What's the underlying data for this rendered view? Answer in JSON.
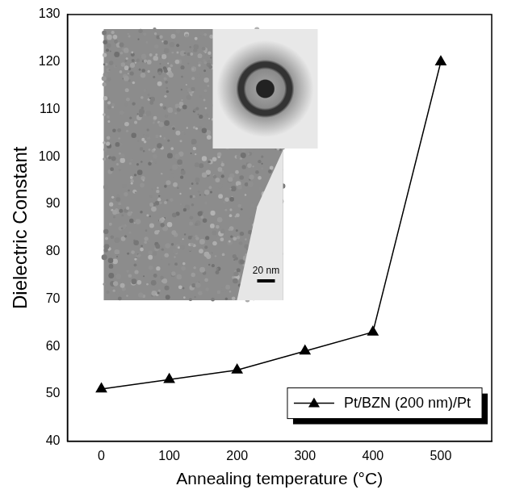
{
  "chart_data": {
    "type": "line",
    "x_label": "Annealing temperature (°C)",
    "y_label": "Dielectric Constant",
    "x": [
      0,
      100,
      200,
      300,
      400,
      500
    ],
    "series": [
      {
        "name": "Pt/BZN (200 nm)/Pt",
        "color": "#000000",
        "marker": "triangle",
        "line_style": "solid",
        "values": [
          51,
          53,
          55,
          59,
          63,
          120
        ]
      }
    ],
    "xlim": [
      -50,
      575
    ],
    "xticks": [
      0,
      100,
      200,
      300,
      400,
      500
    ],
    "ylim": [
      40,
      130
    ],
    "yticks": [
      40,
      50,
      60,
      70,
      80,
      90,
      100,
      110,
      120,
      130
    ],
    "grid": false,
    "legend": "lower right",
    "annotations": [
      "20 nm"
    ]
  }
}
